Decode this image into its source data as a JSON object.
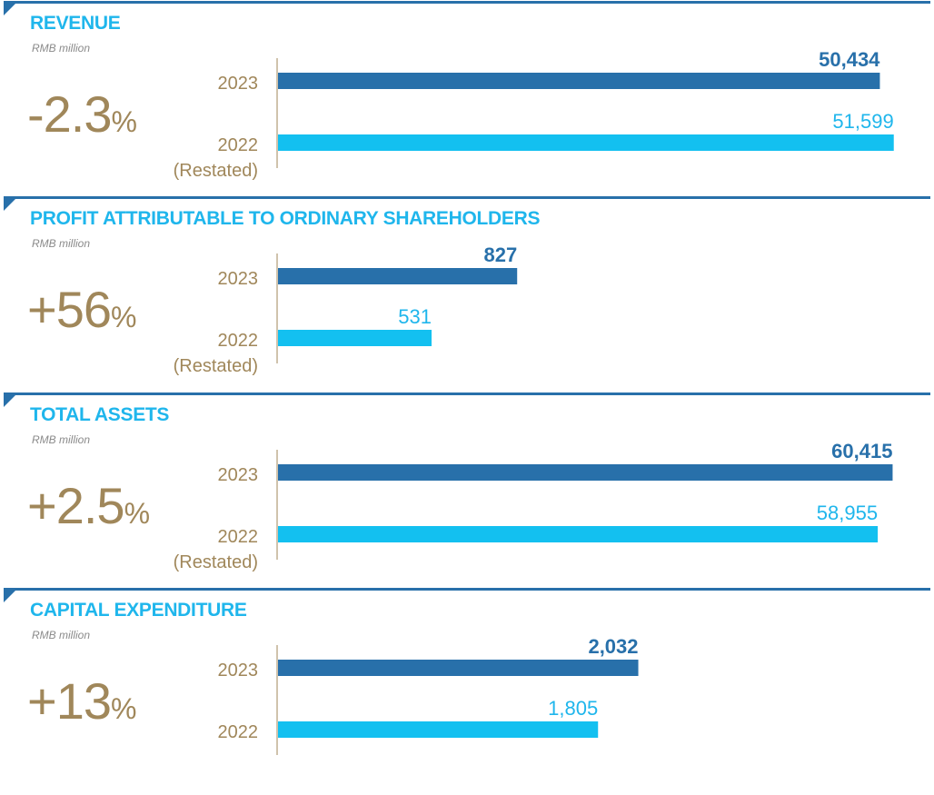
{
  "colors": {
    "accent_line": "#2870aa",
    "current_bar": "#2870aa",
    "prior_bar": "#13c0f0",
    "title": "#1fb6ec",
    "change_text": "#a0875a",
    "axis": "#a0875a"
  },
  "chart_data": [
    {
      "type": "bar",
      "orientation": "horizontal",
      "title": "REVENUE",
      "unit": "RMB million",
      "change": "-2.3",
      "change_suffix": "%",
      "categories": [
        "2023",
        "2022"
      ],
      "category_sublabels": [
        "",
        "(Restated)"
      ],
      "values": [
        50434,
        51599
      ],
      "value_labels": [
        "50,434",
        "51,599"
      ],
      "xlim": [
        0,
        52000
      ]
    },
    {
      "type": "bar",
      "orientation": "horizontal",
      "title": "PROFIT ATTRIBUTABLE TO ORDINARY SHAREHOLDERS",
      "unit": "RMB million",
      "change": "+56",
      "change_suffix": "%",
      "categories": [
        "2023",
        "2022"
      ],
      "category_sublabels": [
        "",
        "(Restated)"
      ],
      "values": [
        827,
        531
      ],
      "value_labels": [
        "827",
        "531"
      ],
      "xlim": [
        0,
        2146
      ]
    },
    {
      "type": "bar",
      "orientation": "horizontal",
      "title": "TOTAL ASSETS",
      "unit": "RMB million",
      "change": "+2.5",
      "change_suffix": "%",
      "categories": [
        "2023",
        "2022"
      ],
      "category_sublabels": [
        "",
        "(Restated)"
      ],
      "values": [
        60415,
        58955
      ],
      "value_labels": [
        "60,415",
        "58,955"
      ],
      "xlim": [
        0,
        61000
      ]
    },
    {
      "type": "bar",
      "orientation": "horizontal",
      "title": "CAPITAL EXPENDITURE",
      "unit": "RMB million",
      "change": "+13",
      "change_suffix": "%",
      "categories": [
        "2023",
        "2022"
      ],
      "category_sublabels": [
        "",
        ""
      ],
      "values": [
        2032,
        1805
      ],
      "value_labels": [
        "2,032",
        "1,805"
      ],
      "xlim": [
        0,
        3500
      ]
    }
  ]
}
